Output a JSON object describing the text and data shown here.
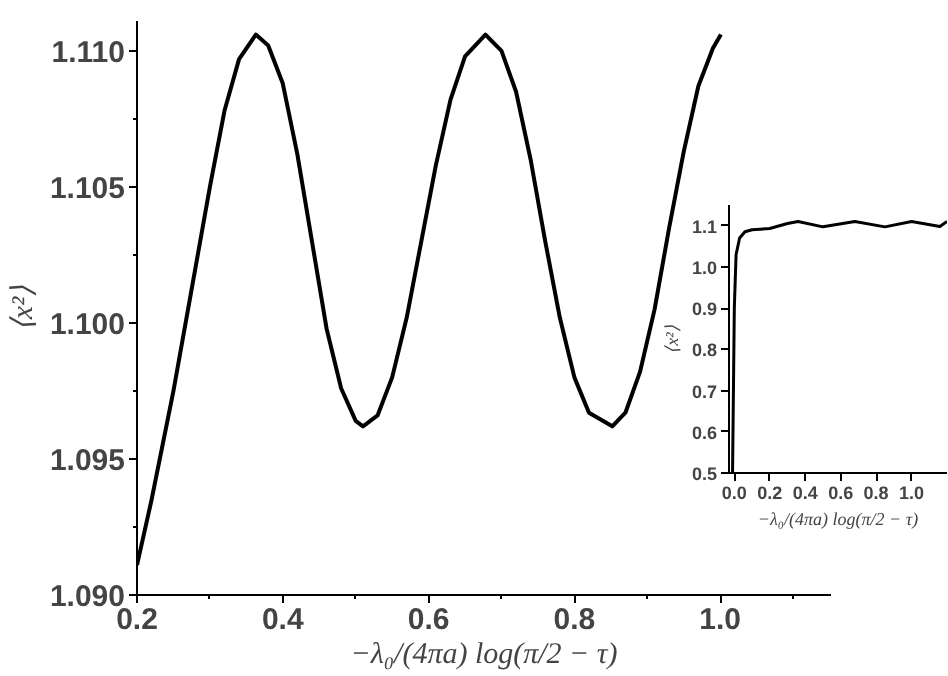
{
  "chart_data": [
    {
      "type": "line",
      "xlabel": "−λ₀/(4πa) log(π/2 − τ)",
      "ylabel": "⟨x²⟩",
      "xlim": [
        0.2,
        1.152
      ],
      "ylim": [
        1.09,
        1.1111
      ],
      "xticks": [
        0.2,
        {
          "value": 0.3,
          "label": null
        },
        0.4,
        {
          "value": 0.5,
          "label": null
        },
        0.6,
        {
          "value": 0.7,
          "label": null
        },
        0.8,
        {
          "value": 0.9,
          "label": null
        },
        {
          "value": 1.0,
          "label": "1.0"
        },
        {
          "value": 1.1,
          "label": null
        }
      ],
      "yticks": [
        {
          "value": 1.09,
          "label": "1.090"
        },
        {
          "value": 1.0925,
          "label": null
        },
        {
          "value": 1.095,
          "label": "1.095"
        },
        {
          "value": 1.0975,
          "label": null
        },
        {
          "value": 1.1,
          "label": "1.100"
        },
        {
          "value": 1.1025,
          "label": null
        },
        {
          "value": 1.105,
          "label": "1.105"
        },
        {
          "value": 1.1075,
          "label": null
        },
        {
          "value": 1.11,
          "label": "1.110"
        }
      ],
      "series": [
        {
          "color": "#000000",
          "x": [
            0.2,
            0.22,
            0.25,
            0.28,
            0.3,
            0.32,
            0.34,
            0.363,
            0.38,
            0.4,
            0.42,
            0.44,
            0.46,
            0.48,
            0.5,
            0.51,
            0.53,
            0.55,
            0.57,
            0.59,
            0.61,
            0.63,
            0.65,
            0.678,
            0.7,
            0.72,
            0.74,
            0.76,
            0.78,
            0.8,
            0.82,
            0.852,
            0.87,
            0.89,
            0.91,
            0.93,
            0.95,
            0.97,
            0.99,
            1.001
          ],
          "values": [
            1.0911,
            1.0935,
            1.0975,
            1.102,
            1.105,
            1.1078,
            1.1097,
            1.1106,
            1.1102,
            1.1088,
            1.1062,
            1.103,
            1.0998,
            1.0976,
            1.0964,
            1.0962,
            1.0966,
            1.098,
            1.1002,
            1.103,
            1.1058,
            1.1082,
            1.1098,
            1.1106,
            1.11,
            1.1085,
            1.106,
            1.103,
            1.1002,
            1.098,
            1.0967,
            1.0962,
            1.0967,
            1.0982,
            1.1005,
            1.1035,
            1.1063,
            1.1087,
            1.1101,
            1.1106
          ]
        }
      ],
      "grid": false,
      "marker": "none",
      "line_style": "solid"
    },
    {
      "type": "line",
      "xlabel": "−λ₀/(4πa) log(π/2 − τ)",
      "ylabel": "⟨x²⟩",
      "xlim": [
        -0.03,
        1.2
      ],
      "ylim": [
        0.5,
        1.15
      ],
      "xticks": [
        {
          "value": 0.0,
          "label": "0.0"
        },
        {
          "value": 0.2,
          "label": "0.2"
        },
        {
          "value": 0.4,
          "label": "0.4"
        },
        {
          "value": 0.6,
          "label": "0.6"
        },
        {
          "value": 0.8,
          "label": "0.8"
        },
        {
          "value": 1.0,
          "label": "1.0"
        }
      ],
      "yticks": [
        0.5,
        0.6,
        0.7,
        0.8,
        0.9,
        {
          "value": 1.0,
          "label": "1.0"
        },
        1.1
      ],
      "series": [
        {
          "color": "#000000",
          "x": [
            -0.01,
            0.0,
            0.01,
            0.03,
            0.06,
            0.1,
            0.2,
            0.3,
            0.36,
            0.5,
            0.68,
            0.85,
            1.0,
            1.16,
            1.2
          ],
          "values": [
            0.5,
            0.9,
            1.03,
            1.07,
            1.085,
            1.09,
            1.093,
            1.105,
            1.11,
            1.097,
            1.11,
            1.097,
            1.11,
            1.098,
            1.11
          ]
        }
      ],
      "grid": false,
      "marker": "none",
      "line_style": "solid"
    }
  ]
}
